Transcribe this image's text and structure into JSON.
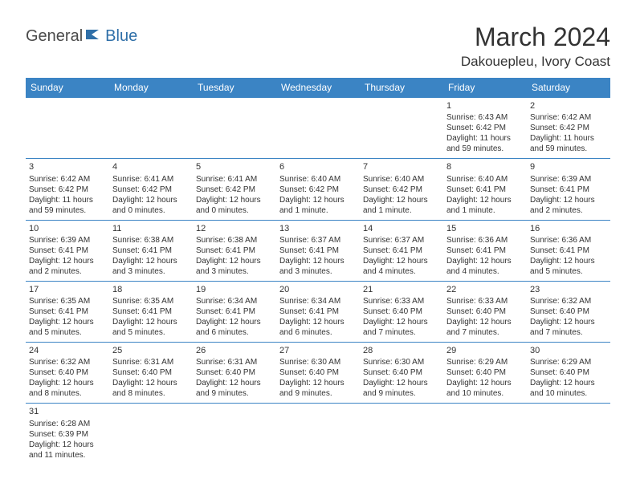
{
  "logo": {
    "part1": "General",
    "part2": "Blue"
  },
  "title": "March 2024",
  "location": "Dakouepleu, Ivory Coast",
  "colors": {
    "headerBg": "#3b84c4",
    "headerText": "#ffffff",
    "border": "#3b84c4",
    "shaded": "#eeeeee",
    "logoGray": "#4a4a4a",
    "logoBlue": "#2f6fa8"
  },
  "dayHeaders": [
    "Sunday",
    "Monday",
    "Tuesday",
    "Wednesday",
    "Thursday",
    "Friday",
    "Saturday"
  ],
  "weeks": [
    [
      null,
      null,
      null,
      null,
      null,
      {
        "n": "1",
        "sr": "Sunrise: 6:43 AM",
        "ss": "Sunset: 6:42 PM",
        "d1": "Daylight: 11 hours",
        "d2": "and 59 minutes."
      },
      {
        "n": "2",
        "sr": "Sunrise: 6:42 AM",
        "ss": "Sunset: 6:42 PM",
        "d1": "Daylight: 11 hours",
        "d2": "and 59 minutes."
      }
    ],
    [
      {
        "n": "3",
        "sr": "Sunrise: 6:42 AM",
        "ss": "Sunset: 6:42 PM",
        "d1": "Daylight: 11 hours",
        "d2": "and 59 minutes."
      },
      {
        "n": "4",
        "sr": "Sunrise: 6:41 AM",
        "ss": "Sunset: 6:42 PM",
        "d1": "Daylight: 12 hours",
        "d2": "and 0 minutes."
      },
      {
        "n": "5",
        "sr": "Sunrise: 6:41 AM",
        "ss": "Sunset: 6:42 PM",
        "d1": "Daylight: 12 hours",
        "d2": "and 0 minutes."
      },
      {
        "n": "6",
        "sr": "Sunrise: 6:40 AM",
        "ss": "Sunset: 6:42 PM",
        "d1": "Daylight: 12 hours",
        "d2": "and 1 minute."
      },
      {
        "n": "7",
        "sr": "Sunrise: 6:40 AM",
        "ss": "Sunset: 6:42 PM",
        "d1": "Daylight: 12 hours",
        "d2": "and 1 minute."
      },
      {
        "n": "8",
        "sr": "Sunrise: 6:40 AM",
        "ss": "Sunset: 6:41 PM",
        "d1": "Daylight: 12 hours",
        "d2": "and 1 minute."
      },
      {
        "n": "9",
        "sr": "Sunrise: 6:39 AM",
        "ss": "Sunset: 6:41 PM",
        "d1": "Daylight: 12 hours",
        "d2": "and 2 minutes."
      }
    ],
    [
      {
        "n": "10",
        "sr": "Sunrise: 6:39 AM",
        "ss": "Sunset: 6:41 PM",
        "d1": "Daylight: 12 hours",
        "d2": "and 2 minutes."
      },
      {
        "n": "11",
        "sr": "Sunrise: 6:38 AM",
        "ss": "Sunset: 6:41 PM",
        "d1": "Daylight: 12 hours",
        "d2": "and 3 minutes."
      },
      {
        "n": "12",
        "sr": "Sunrise: 6:38 AM",
        "ss": "Sunset: 6:41 PM",
        "d1": "Daylight: 12 hours",
        "d2": "and 3 minutes."
      },
      {
        "n": "13",
        "sr": "Sunrise: 6:37 AM",
        "ss": "Sunset: 6:41 PM",
        "d1": "Daylight: 12 hours",
        "d2": "and 3 minutes."
      },
      {
        "n": "14",
        "sr": "Sunrise: 6:37 AM",
        "ss": "Sunset: 6:41 PM",
        "d1": "Daylight: 12 hours",
        "d2": "and 4 minutes."
      },
      {
        "n": "15",
        "sr": "Sunrise: 6:36 AM",
        "ss": "Sunset: 6:41 PM",
        "d1": "Daylight: 12 hours",
        "d2": "and 4 minutes."
      },
      {
        "n": "16",
        "sr": "Sunrise: 6:36 AM",
        "ss": "Sunset: 6:41 PM",
        "d1": "Daylight: 12 hours",
        "d2": "and 5 minutes."
      }
    ],
    [
      {
        "n": "17",
        "sr": "Sunrise: 6:35 AM",
        "ss": "Sunset: 6:41 PM",
        "d1": "Daylight: 12 hours",
        "d2": "and 5 minutes."
      },
      {
        "n": "18",
        "sr": "Sunrise: 6:35 AM",
        "ss": "Sunset: 6:41 PM",
        "d1": "Daylight: 12 hours",
        "d2": "and 5 minutes."
      },
      {
        "n": "19",
        "sr": "Sunrise: 6:34 AM",
        "ss": "Sunset: 6:41 PM",
        "d1": "Daylight: 12 hours",
        "d2": "and 6 minutes."
      },
      {
        "n": "20",
        "sr": "Sunrise: 6:34 AM",
        "ss": "Sunset: 6:41 PM",
        "d1": "Daylight: 12 hours",
        "d2": "and 6 minutes."
      },
      {
        "n": "21",
        "sr": "Sunrise: 6:33 AM",
        "ss": "Sunset: 6:40 PM",
        "d1": "Daylight: 12 hours",
        "d2": "and 7 minutes."
      },
      {
        "n": "22",
        "sr": "Sunrise: 6:33 AM",
        "ss": "Sunset: 6:40 PM",
        "d1": "Daylight: 12 hours",
        "d2": "and 7 minutes."
      },
      {
        "n": "23",
        "sr": "Sunrise: 6:32 AM",
        "ss": "Sunset: 6:40 PM",
        "d1": "Daylight: 12 hours",
        "d2": "and 7 minutes."
      }
    ],
    [
      {
        "n": "24",
        "sr": "Sunrise: 6:32 AM",
        "ss": "Sunset: 6:40 PM",
        "d1": "Daylight: 12 hours",
        "d2": "and 8 minutes."
      },
      {
        "n": "25",
        "sr": "Sunrise: 6:31 AM",
        "ss": "Sunset: 6:40 PM",
        "d1": "Daylight: 12 hours",
        "d2": "and 8 minutes."
      },
      {
        "n": "26",
        "sr": "Sunrise: 6:31 AM",
        "ss": "Sunset: 6:40 PM",
        "d1": "Daylight: 12 hours",
        "d2": "and 9 minutes."
      },
      {
        "n": "27",
        "sr": "Sunrise: 6:30 AM",
        "ss": "Sunset: 6:40 PM",
        "d1": "Daylight: 12 hours",
        "d2": "and 9 minutes."
      },
      {
        "n": "28",
        "sr": "Sunrise: 6:30 AM",
        "ss": "Sunset: 6:40 PM",
        "d1": "Daylight: 12 hours",
        "d2": "and 9 minutes."
      },
      {
        "n": "29",
        "sr": "Sunrise: 6:29 AM",
        "ss": "Sunset: 6:40 PM",
        "d1": "Daylight: 12 hours",
        "d2": "and 10 minutes."
      },
      {
        "n": "30",
        "sr": "Sunrise: 6:29 AM",
        "ss": "Sunset: 6:40 PM",
        "d1": "Daylight: 12 hours",
        "d2": "and 10 minutes."
      }
    ],
    [
      {
        "n": "31",
        "sr": "Sunrise: 6:28 AM",
        "ss": "Sunset: 6:39 PM",
        "d1": "Daylight: 12 hours",
        "d2": "and 11 minutes."
      },
      null,
      null,
      null,
      null,
      null,
      null
    ]
  ],
  "shadedRows": [
    1,
    3
  ]
}
